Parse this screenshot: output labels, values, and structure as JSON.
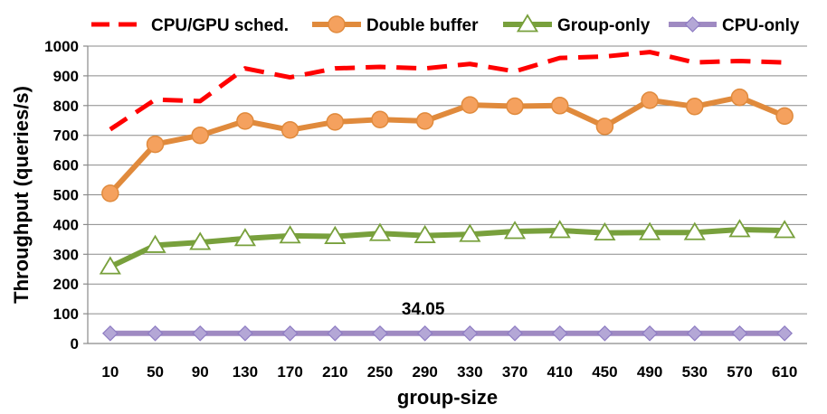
{
  "chart_data": {
    "type": "line",
    "title": "",
    "xlabel": "group-size",
    "ylabel": "Throughput (queries/s)",
    "categories": [
      "10",
      "50",
      "90",
      "130",
      "170",
      "210",
      "250",
      "290",
      "330",
      "370",
      "410",
      "450",
      "490",
      "530",
      "570",
      "610"
    ],
    "ylim": [
      0,
      1000
    ],
    "yticks": [
      "0",
      "100",
      "200",
      "300",
      "400",
      "500",
      "600",
      "700",
      "800",
      "900",
      "1000"
    ],
    "grid": true,
    "legend_position": "top",
    "series": [
      {
        "name": "CPU/GPU sched.",
        "color": "#ff0000",
        "style": "dashed",
        "marker": "none",
        "values": [
          720,
          820,
          815,
          925,
          895,
          925,
          930,
          925,
          940,
          915,
          960,
          965,
          980,
          945,
          950,
          945
        ]
      },
      {
        "name": "Double buffer",
        "color": "#e08a3c",
        "style": "solid",
        "marker": "circle",
        "values": [
          505,
          670,
          700,
          748,
          718,
          745,
          753,
          748,
          802,
          798,
          800,
          730,
          818,
          797,
          828,
          765
        ]
      },
      {
        "name": "Group-only",
        "color": "#78a03c",
        "style": "solid",
        "marker": "triangle",
        "values": [
          258,
          330,
          340,
          353,
          362,
          360,
          370,
          363,
          367,
          377,
          380,
          372,
          373,
          373,
          383,
          380
        ]
      },
      {
        "name": "CPU-only",
        "color": "#9f8ac2",
        "style": "solid",
        "marker": "diamond",
        "values": [
          34.05,
          34.05,
          34.05,
          34.05,
          34.05,
          34.05,
          34.05,
          34.05,
          34.05,
          34.05,
          34.05,
          34.05,
          34.05,
          34.05,
          34.05,
          34.05
        ]
      }
    ],
    "annotations": [
      {
        "text": "34.05",
        "series": "CPU-only",
        "category": "290"
      }
    ]
  }
}
